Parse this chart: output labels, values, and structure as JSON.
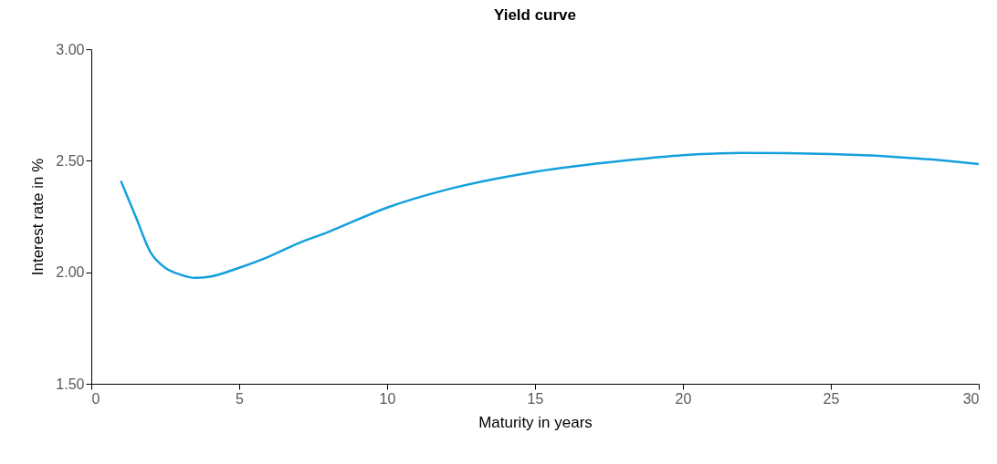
{
  "chart_data": {
    "type": "line",
    "title": "Yield curve",
    "xlabel": "Maturity in years",
    "ylabel": "Interest rate in %",
    "xlim": [
      0,
      30
    ],
    "xticks": [
      0,
      5,
      10,
      15,
      20,
      25,
      30
    ],
    "ylim": [
      1.5,
      3.0
    ],
    "yticks": [
      {
        "value": 1.5,
        "label": "1.50"
      },
      {
        "value": 2.0,
        "label": "2.00"
      },
      {
        "value": 2.5,
        "label": "2.50"
      },
      {
        "value": 3.0,
        "label": "3.00"
      }
    ],
    "grid": false,
    "marker": "none",
    "line_style": "solid",
    "series": [
      {
        "color": "#14a0dc",
        "x": [
          1,
          1.5,
          2,
          2.5,
          3,
          3.5,
          4,
          5,
          6,
          7,
          8,
          10,
          12,
          15,
          18,
          20,
          22,
          25,
          28,
          30
        ],
        "values": [
          2.41,
          2.25,
          2.09,
          2.02,
          1.99,
          1.975,
          1.98,
          2.02,
          2.07,
          2.13,
          2.18,
          2.29,
          2.37,
          2.45,
          2.5,
          2.525,
          2.535,
          2.53,
          2.51,
          2.485
        ]
      }
    ]
  }
}
